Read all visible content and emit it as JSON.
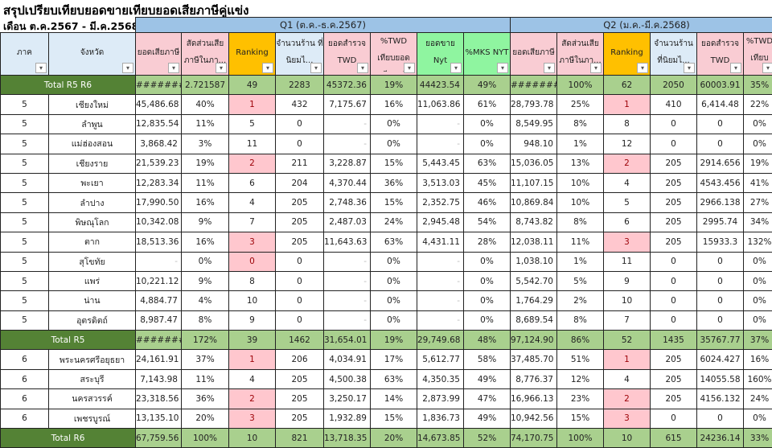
{
  "title": "สรุปเปรียบเทียบยอดขายเทียบยอดเสียภาษีคู่แข่ง",
  "subtitle": "เดือน ต.ค.2567 - มี.ค.2568",
  "q1_label": "Q1 (ต.ค.-ธ.ค.2567)",
  "q2_label": "Q2 (ม.ค.-มี.ค.2568)",
  "filter_icon": "▾",
  "headers": [
    "ภาค",
    "จังหวัด",
    "ยอดเสียภาษี",
    "สัดส่วนเสีย ภาษีในภา...",
    "Ranking",
    "จำนวนร้าน ที่นิยมไ...",
    "ยอดสำรวจ TWD",
    "%TWD เทียบยอด เสียภาษี",
    "ยอดขาย Nyt",
    "%MKS NYT",
    "ยอดเสียภาษี",
    "สัดส่วนเสีย ภาษีในภา...",
    "Ranking",
    "จำนวนร้าน ที่นิยมไ...",
    "ยอดสำรวจ TWD",
    "%TWD เทียบยอด"
  ],
  "rows": [
    {
      "type": "total",
      "label": "Total R5 R6",
      "cells": [
        "#######",
        "2.721587",
        "49",
        "2283",
        "45372.36",
        "19%",
        "44423.54",
        "49%",
        "#######",
        "100%",
        "62",
        "2050",
        "60003.91",
        "35%"
      ]
    },
    {
      "type": "data",
      "cells": [
        "5",
        "เชียงใหม่",
        "45,486.68",
        "40%",
        "1",
        "432",
        "7,175.67",
        "16%",
        "11,063.86",
        "61%",
        "28,793.78",
        "25%",
        "1",
        "410",
        "6,414.48",
        "22%"
      ]
    },
    {
      "type": "data",
      "cells": [
        "5",
        "ลำพูน",
        "12,835.54",
        "11%",
        "5",
        "0",
        "-",
        "0%",
        "-",
        "0%",
        "8,549.95",
        "8%",
        "8",
        "0",
        "0",
        "0%"
      ]
    },
    {
      "type": "data",
      "cells": [
        "5",
        "แม่ฮ่องสอน",
        "3,868.42",
        "3%",
        "11",
        "0",
        "-",
        "0%",
        "-",
        "0%",
        "948.10",
        "1%",
        "12",
        "0",
        "0",
        "0%"
      ]
    },
    {
      "type": "data",
      "cells": [
        "5",
        "เชียงราย",
        "21,539.23",
        "19%",
        "2",
        "211",
        "3,228.87",
        "15%",
        "5,443.45",
        "63%",
        "15,036.05",
        "13%",
        "2",
        "205",
        "2914.656",
        "19%"
      ]
    },
    {
      "type": "data",
      "cells": [
        "5",
        "พะเยา",
        "12,283.34",
        "11%",
        "6",
        "204",
        "4,370.44",
        "36%",
        "3,513.03",
        "45%",
        "11,107.15",
        "10%",
        "4",
        "205",
        "4543.456",
        "41%"
      ]
    },
    {
      "type": "data",
      "cells": [
        "5",
        "ลำปาง",
        "17,990.50",
        "16%",
        "4",
        "205",
        "2,748.36",
        "15%",
        "2,352.75",
        "46%",
        "10,869.84",
        "10%",
        "5",
        "205",
        "2966.138",
        "27%"
      ]
    },
    {
      "type": "data",
      "cells": [
        "5",
        "พิษณุโลก",
        "10,342.08",
        "9%",
        "7",
        "205",
        "2,487.03",
        "24%",
        "2,945.48",
        "54%",
        "8,743.82",
        "8%",
        "6",
        "205",
        "2995.74",
        "34%"
      ]
    },
    {
      "type": "data",
      "cells": [
        "5",
        "ตาก",
        "18,513.36",
        "16%",
        "3",
        "205",
        "11,643.63",
        "63%",
        "4,431.11",
        "28%",
        "12,038.11",
        "11%",
        "3",
        "205",
        "15933.3",
        "132%"
      ]
    },
    {
      "type": "data",
      "cells": [
        "5",
        "สุโขทัย",
        "-",
        "0%",
        "0",
        "0",
        "-",
        "0%",
        "-",
        "0%",
        "1,038.10",
        "1%",
        "11",
        "0",
        "0",
        "0%"
      ]
    },
    {
      "type": "data",
      "cells": [
        "5",
        "แพร่",
        "10,221.12",
        "9%",
        "8",
        "0",
        "-",
        "0%",
        "-",
        "0%",
        "5,542.70",
        "5%",
        "9",
        "0",
        "0",
        "0%"
      ]
    },
    {
      "type": "data",
      "cells": [
        "5",
        "น่าน",
        "4,884.77",
        "4%",
        "10",
        "0",
        "-",
        "0%",
        "-",
        "0%",
        "1,764.29",
        "2%",
        "10",
        "0",
        "0",
        "0%"
      ]
    },
    {
      "type": "data",
      "cells": [
        "5",
        "อุตรดิตถ์",
        "8,987.47",
        "8%",
        "9",
        "0",
        "-",
        "0%",
        "-",
        "0%",
        "8,689.54",
        "8%",
        "7",
        "0",
        "0",
        "0%"
      ]
    },
    {
      "type": "total",
      "label": "Total R5",
      "cells": [
        "#######",
        "172%",
        "39",
        "1462",
        "31,654.01",
        "19%",
        "29,749.68",
        "48%",
        "97,124.90",
        "86%",
        "52",
        "1435",
        "35767.77",
        "37%"
      ]
    },
    {
      "type": "data",
      "cells": [
        "6",
        "พระนครศรีอยุธยา",
        "24,161.91",
        "37%",
        "1",
        "206",
        "4,034.91",
        "17%",
        "5,612.77",
        "58%",
        "37,485.70",
        "51%",
        "1",
        "205",
        "6024.427",
        "16%"
      ]
    },
    {
      "type": "data",
      "cells": [
        "6",
        "สระบุรี",
        "7,143.98",
        "11%",
        "4",
        "205",
        "4,500.38",
        "63%",
        "4,350.35",
        "49%",
        "8,776.37",
        "12%",
        "4",
        "205",
        "14055.58",
        "160%"
      ]
    },
    {
      "type": "data",
      "cells": [
        "6",
        "นครสวรรค์",
        "23,318.56",
        "36%",
        "2",
        "205",
        "3,250.17",
        "14%",
        "2,873.99",
        "47%",
        "16,966.13",
        "23%",
        "2",
        "205",
        "4156.132",
        "24%"
      ]
    },
    {
      "type": "data",
      "cells": [
        "6",
        "เพชรบูรณ์",
        "13,135.10",
        "20%",
        "3",
        "205",
        "1,932.89",
        "15%",
        "1,836.73",
        "49%",
        "10,942.56",
        "15%",
        "3",
        "0",
        "0",
        "0%"
      ]
    },
    {
      "type": "total",
      "label": "Total R6",
      "cells": [
        "67,759.56",
        "100%",
        "10",
        "821",
        "13,718.35",
        "20%",
        "14,673.85",
        "52%",
        "74,170.75",
        "100%",
        "10",
        "615",
        "24236.14",
        "33%"
      ]
    }
  ]
}
